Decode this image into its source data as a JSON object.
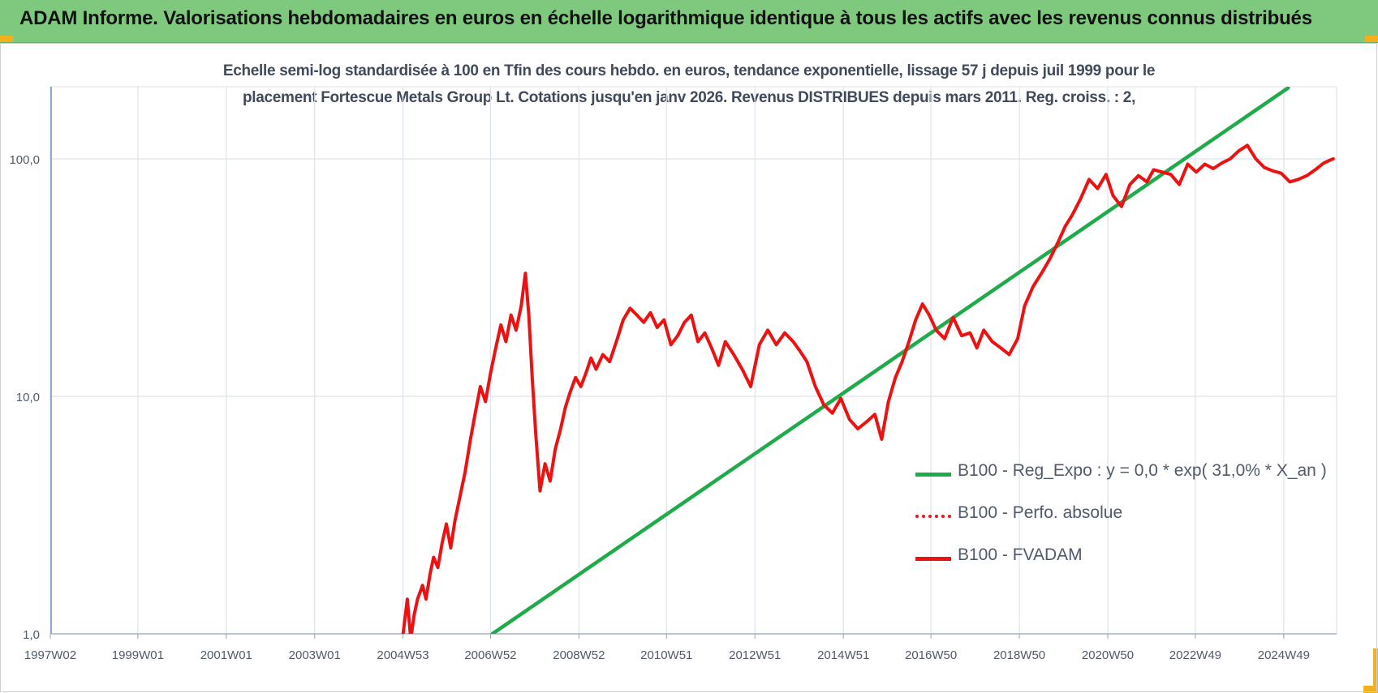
{
  "header": {
    "title": "ADAM Informe. Valorisations hebdomadaires en euros en échelle logarithmique identique à tous les actifs avec les revenus connus distribués"
  },
  "colors": {
    "header_bg": "#7fc97f",
    "corner": "#f2b01e",
    "reg_line": "#1fab4a",
    "fvadam_line": "#ee1111",
    "perfo_line": "#ee1111",
    "grid": "#dde3ea"
  },
  "chart_data": {
    "type": "line",
    "title_line1": "Echelle semi-log standardisée à 100 en Tfin des cours hebdo. en euros, tendance exponentielle, lissage 57 j depuis juil 1999 pour le",
    "title_line2": "placement Fortescue Metals Group Lt. Cotations jusqu'en janv 2026. Revenus DISTRIBUES depuis mars 2011. Reg. croiss. : 2,",
    "y_scale": "log",
    "ylim": [
      1,
      190
    ],
    "y_ticks": [
      "1,0",
      "10,0",
      "100,0"
    ],
    "x_ticks": [
      "1997W02",
      "1999W01",
      "2001W01",
      "2003W01",
      "2004W53",
      "2006W52",
      "2008W52",
      "2010W51",
      "2012W51",
      "2014W51",
      "2016W50",
      "2018W50",
      "2020W50",
      "2022W49",
      "2024W49"
    ],
    "grid": true,
    "legend_position": "bottom-right",
    "legend": [
      {
        "label": "B100 - Reg_Expo : y = 0,0 * exp( 31,0% *  X_an )",
        "color": "#1fab4a",
        "style": "solid"
      },
      {
        "label": "B100 - Perfo. absolue",
        "color": "#ee1111",
        "style": "dotted"
      },
      {
        "label": "B100 - FVADAM",
        "color": "#ee1111",
        "style": "solid"
      }
    ],
    "series": [
      {
        "name": "B100 - Reg_Expo : y = 0,0 * exp( 31,0% *  X_an )",
        "x": [
          "2007W02",
          "2025W02"
        ],
        "values": [
          1.0,
          199.0
        ]
      },
      {
        "name": "B100 - FVADAM",
        "x": [
          "2005W01",
          "2005W06",
          "2005W10",
          "2005W14",
          "2005W18",
          "2005W24",
          "2005W28",
          "2005W33",
          "2005W37",
          "2005W42",
          "2005W47",
          "2005W52",
          "2006W05",
          "2006W10",
          "2006W16",
          "2006W22",
          "2006W28",
          "2006W34",
          "2006W40",
          "2006W46",
          "2006W52",
          "2007W06",
          "2007W12",
          "2007W18",
          "2007W24",
          "2007W30",
          "2007W36",
          "2007W41",
          "2007W45",
          "2007W49",
          "2008W01",
          "2008W06",
          "2008W12",
          "2008W18",
          "2008W24",
          "2008W30",
          "2008W36",
          "2008W42",
          "2008W48",
          "2009W02",
          "2009W08",
          "2009W14",
          "2009W20",
          "2009W28",
          "2009W36",
          "2009W44",
          "2009W52",
          "2010W08",
          "2010W16",
          "2010W24",
          "2010W32",
          "2010W40",
          "2010W48",
          "2011W04",
          "2011W12",
          "2011W20",
          "2011W28",
          "2011W36",
          "2011W44",
          "2011W52",
          "2012W08",
          "2012W16",
          "2012W26",
          "2012W36",
          "2012W46",
          "2013W04",
          "2013W14",
          "2013W24",
          "2013W34",
          "2013W44",
          "2013W52",
          "2014W08",
          "2014W18",
          "2014W28",
          "2014W38",
          "2014W48",
          "2015W06",
          "2015W16",
          "2015W26",
          "2015W36",
          "2015W44",
          "2015W52",
          "2016W08",
          "2016W16",
          "2016W24",
          "2016W32",
          "2016W40",
          "2016W48",
          "2017W04",
          "2017W14",
          "2017W24",
          "2017W34",
          "2017W44",
          "2017W52",
          "2018W08",
          "2018W18",
          "2018W28",
          "2018W38",
          "2018W48",
          "2019W04",
          "2019W14",
          "2019W24",
          "2019W34",
          "2019W44",
          "2019W52",
          "2020W08",
          "2020W18",
          "2020W28",
          "2020W38",
          "2020W48",
          "2021W04",
          "2021W14",
          "2021W24",
          "2021W34",
          "2021W44",
          "2021W52",
          "2022W10",
          "2022W20",
          "2022W30",
          "2022W40",
          "2022W50",
          "2023W08",
          "2023W18",
          "2023W28",
          "2023W38",
          "2023W48",
          "2024W06",
          "2024W16",
          "2024W26",
          "2024W36",
          "2024W46",
          "2025W04",
          "2025W14",
          "2025W24",
          "2025W34",
          "2025W44",
          "2025W52",
          "2026W03"
        ],
        "values": [
          1.0,
          1.4,
          0.95,
          1.2,
          1.4,
          1.6,
          1.4,
          1.8,
          2.1,
          1.9,
          2.4,
          2.9,
          2.3,
          3.0,
          3.8,
          4.8,
          6.5,
          8.5,
          11.0,
          9.5,
          12.5,
          16.0,
          20.0,
          17.0,
          22.0,
          19.0,
          24.0,
          33.0,
          22.0,
          12.0,
          7.0,
          4.0,
          5.2,
          4.4,
          6.0,
          7.2,
          9.0,
          10.5,
          12.0,
          11.0,
          12.5,
          14.5,
          13.0,
          15.0,
          14.0,
          17.0,
          21.0,
          23.5,
          22.0,
          20.5,
          22.5,
          19.5,
          21.0,
          16.5,
          18.0,
          20.5,
          22.0,
          17.0,
          18.5,
          16.0,
          13.5,
          17.0,
          15.0,
          13.0,
          11.0,
          16.5,
          19.0,
          16.5,
          18.5,
          17.0,
          15.5,
          14.0,
          11.0,
          9.2,
          8.5,
          9.8,
          8.0,
          7.3,
          7.8,
          8.4,
          6.6,
          9.5,
          12.0,
          14.0,
          17.0,
          21.0,
          24.5,
          22.0,
          19.0,
          17.5,
          21.5,
          18.0,
          18.5,
          16.0,
          19.0,
          17.0,
          16.0,
          15.0,
          17.5,
          24.0,
          29.0,
          33.0,
          38.0,
          45.0,
          52.0,
          58.0,
          68.0,
          82.0,
          75.0,
          86.0,
          70.0,
          63.0,
          78.0,
          85.0,
          80.0,
          90.0,
          88.0,
          86.0,
          78.0,
          95.0,
          88.0,
          95.0,
          91.0,
          96.0,
          100.0,
          108.0,
          114.0,
          100.0,
          92.0,
          89.0,
          87.0,
          80.0,
          82.0,
          85.0,
          90.0,
          96.0,
          99.0,
          100.0
        ]
      }
    ]
  }
}
